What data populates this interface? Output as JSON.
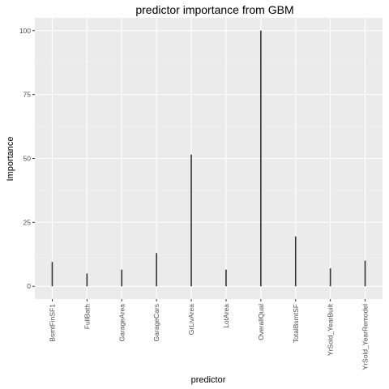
{
  "chart_data": {
    "type": "bar",
    "title": "predictor importance from GBM",
    "xlabel": "predictor",
    "ylabel": "Importance",
    "categories": [
      "BsmtFinSF1",
      "FullBath",
      "GarageArea",
      "GarageCars",
      "GrLivArea",
      "LotArea",
      "OverallQual",
      "TotalBsmtSF",
      "YrSold_YearBuilt",
      "YrSold_YearRemodel"
    ],
    "values": [
      9.5,
      5,
      6.5,
      13,
      51.5,
      6.5,
      100,
      19.5,
      7,
      10
    ],
    "ylim": [
      -5,
      105
    ],
    "yticks": [
      0,
      25,
      50,
      75,
      100
    ],
    "grid": true,
    "colors": {
      "panel": "#ebebeb",
      "grid_major": "#ffffff",
      "bar": "#333333",
      "tick_text": "#4d4d4d"
    }
  }
}
